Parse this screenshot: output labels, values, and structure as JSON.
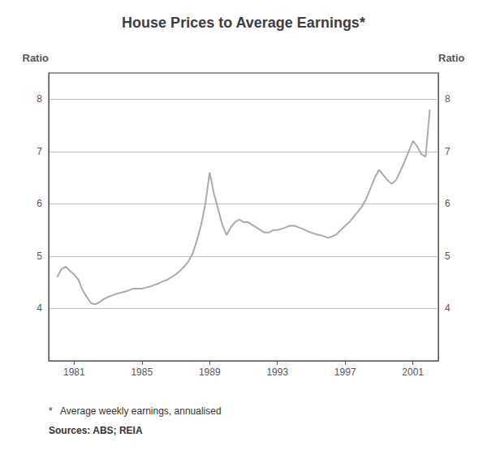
{
  "chart_data": {
    "type": "line",
    "title": "House Prices to Average Earnings*",
    "ylabel": "Ratio",
    "y2label": "Ratio",
    "annotations": [
      "*   Average weekly earnings, annualised",
      "Sources: ABS; REIA"
    ],
    "color": "#aaaaaa",
    "grid": true,
    "xlim": [
      1979.5,
      2002.5
    ],
    "xticks": [
      1981,
      1985,
      1989,
      1993,
      1997,
      2001
    ],
    "ylim": [
      3,
      8.5
    ],
    "yticks": [
      4,
      5,
      6,
      7,
      8
    ],
    "y2lim": [
      3,
      8.5
    ],
    "y2ticks": [
      4,
      5,
      6,
      7,
      8
    ],
    "x": [
      1980.0,
      1980.25,
      1980.5,
      1980.75,
      1981.0,
      1981.25,
      1981.5,
      1981.75,
      1982.0,
      1982.25,
      1982.5,
      1982.75,
      1983.0,
      1983.25,
      1983.5,
      1983.75,
      1984.0,
      1984.25,
      1984.5,
      1984.75,
      1985.0,
      1985.25,
      1985.5,
      1985.75,
      1986.0,
      1986.25,
      1986.5,
      1986.75,
      1987.0,
      1987.25,
      1987.5,
      1987.75,
      1988.0,
      1988.25,
      1988.5,
      1988.75,
      1989.0,
      1989.25,
      1989.5,
      1989.75,
      1990.0,
      1990.25,
      1990.5,
      1990.75,
      1991.0,
      1991.25,
      1991.5,
      1991.75,
      1992.0,
      1992.25,
      1992.5,
      1992.75,
      1993.0,
      1993.25,
      1993.5,
      1993.75,
      1994.0,
      1994.25,
      1994.5,
      1994.75,
      1995.0,
      1995.25,
      1995.5,
      1995.75,
      1996.0,
      1996.25,
      1996.5,
      1996.75,
      1997.0,
      1997.25,
      1997.5,
      1997.75,
      1998.0,
      1998.25,
      1998.5,
      1998.75,
      1999.0,
      1999.25,
      1999.5,
      1999.75,
      2000.0,
      2000.25,
      2000.5,
      2000.75,
      2001.0,
      2001.25,
      2001.5,
      2001.75,
      2002.0
    ],
    "values": [
      4.6,
      4.75,
      4.8,
      4.72,
      4.65,
      4.55,
      4.35,
      4.22,
      4.1,
      4.08,
      4.12,
      4.18,
      4.22,
      4.25,
      4.28,
      4.3,
      4.32,
      4.35,
      4.38,
      4.38,
      4.38,
      4.4,
      4.42,
      4.45,
      4.48,
      4.52,
      4.55,
      4.6,
      4.65,
      4.72,
      4.8,
      4.9,
      5.05,
      5.3,
      5.6,
      6.0,
      6.6,
      6.2,
      5.9,
      5.6,
      5.4,
      5.55,
      5.65,
      5.7,
      5.65,
      5.65,
      5.6,
      5.55,
      5.5,
      5.45,
      5.45,
      5.5,
      5.5,
      5.52,
      5.55,
      5.58,
      5.58,
      5.55,
      5.52,
      5.48,
      5.45,
      5.42,
      5.4,
      5.38,
      5.35,
      5.38,
      5.42,
      5.5,
      5.58,
      5.65,
      5.75,
      5.85,
      5.95,
      6.1,
      6.3,
      6.5,
      6.65,
      6.55,
      6.45,
      6.38,
      6.45,
      6.62,
      6.8,
      7.0,
      7.2,
      7.1,
      6.95,
      6.9,
      7.8
    ]
  }
}
